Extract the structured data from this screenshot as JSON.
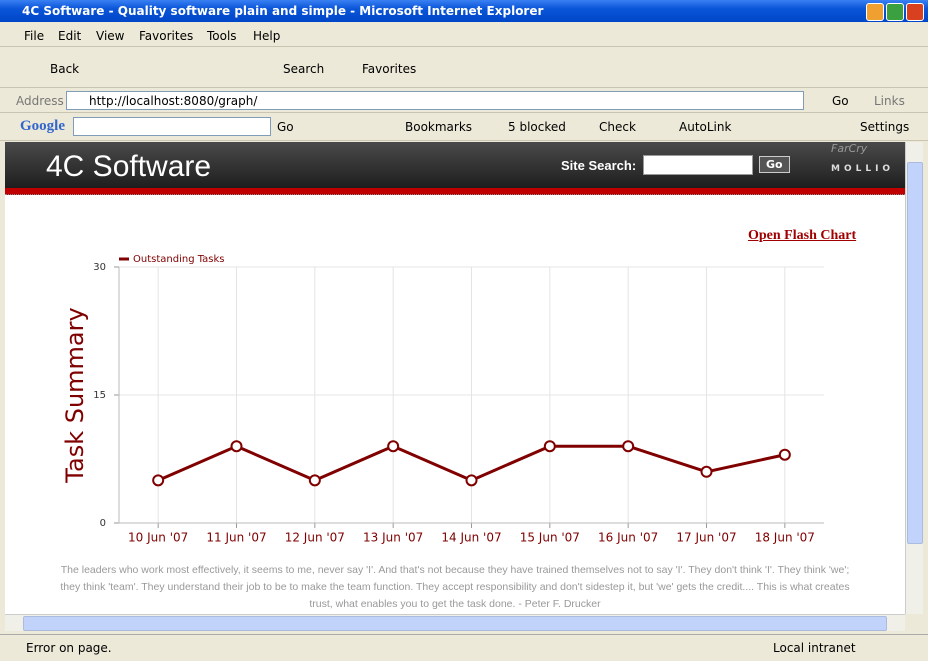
{
  "window": {
    "title": "4C Software - Quality software plain and simple - Microsoft Internet Explorer"
  },
  "menu": [
    "File",
    "Edit",
    "View",
    "Favorites",
    "Tools",
    "Help"
  ],
  "toolbar": {
    "back": "Back",
    "search": "Search",
    "favorites": "Favorites"
  },
  "address_bar": {
    "label": "Address",
    "url": "http://localhost:8080/graph/",
    "go": "Go",
    "links": "Links"
  },
  "google_bar": {
    "logo": "Google",
    "go": "Go",
    "bookmarks": "Bookmarks",
    "blocked": "5 blocked",
    "check": "Check",
    "autolink": "AutoLink",
    "settings": "Settings"
  },
  "site": {
    "name": "4C Software",
    "search_label": "Site Search:",
    "search_button": "Go",
    "brand_top": "FarCry",
    "brand_bottom": "MOLLIO",
    "link": "Open Flash Chart",
    "quote": "The leaders who work most effectively, it seems to me, never say 'I'. And that's not because they have trained themselves not to say 'I'. They don't think 'I'. They think 'we'; they think 'team'. They understand their job to be to make the team function. They accept responsibility and don't sidestep it, but 'we' gets the credit.... This is what creates trust, what enables you to get the task done. - Peter F. Drucker"
  },
  "status": {
    "message": "Error on page.",
    "zone": "Local intranet"
  },
  "chart_data": {
    "type": "line",
    "y_label": "Task Summary",
    "categories": [
      "10 Jun '07",
      "11 Jun '07",
      "12 Jun '07",
      "13 Jun '07",
      "14 Jun '07",
      "15 Jun '07",
      "16 Jun '07",
      "17 Jun '07",
      "18 Jun '07"
    ],
    "series": [
      {
        "name": "Outstanding Tasks",
        "color": "#800000",
        "values": [
          5,
          9,
          5,
          9,
          5,
          9,
          9,
          6,
          8
        ]
      }
    ],
    "ylim": [
      0,
      30
    ],
    "yticks": [
      0,
      15,
      30
    ],
    "grid": true
  }
}
